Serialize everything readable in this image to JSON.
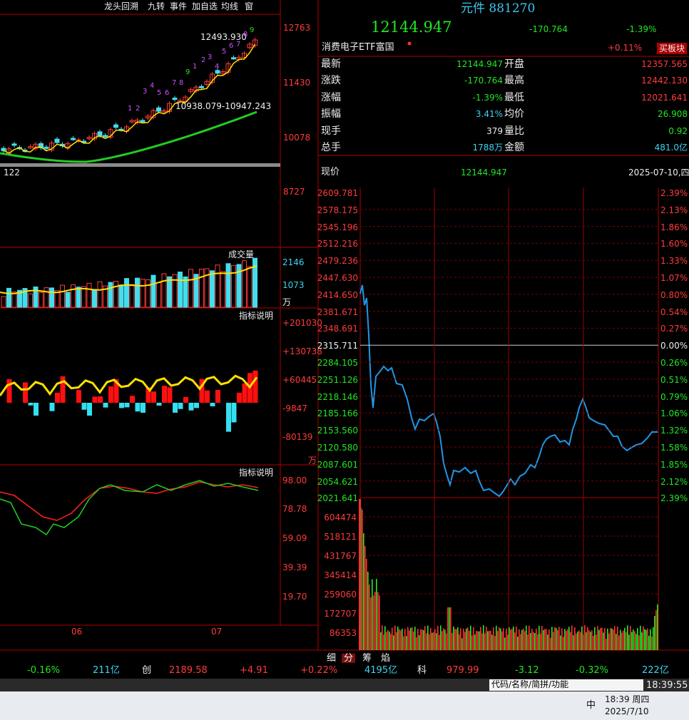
{
  "toolbar": [
    "龙头回溯",
    "九转",
    "事件",
    "加自选",
    "均线",
    "窗"
  ],
  "kline": {
    "price_labels": [
      "12763",
      "11430",
      "10078",
      "8727"
    ],
    "high_note": "12493.930",
    "range_note": "10938.079-10947.243",
    "left_note": "122",
    "nine_turn": [
      "1",
      "2",
      "3",
      "4",
      "5",
      "6",
      "7",
      "8",
      "9",
      "1",
      "2",
      "3",
      "4",
      "5",
      "6",
      "7",
      "8",
      "9"
    ],
    "x_labels": [
      "06",
      "07"
    ]
  },
  "volume_panel": {
    "title": "成交量",
    "labels": [
      "2146",
      "1073"
    ],
    "unit": "万"
  },
  "indicator1": {
    "title": "指标说明",
    "labels": [
      "+201030",
      "+130738",
      "+60445",
      "-9847",
      "-80139"
    ],
    "unit": "万"
  },
  "indicator2": {
    "title": "指标说明",
    "labels": [
      "98.00",
      "78.78",
      "59.09",
      "39.39",
      "19.70"
    ]
  },
  "header": {
    "name": "元件 881270",
    "price": "12144.947",
    "change": "-170.764",
    "pct": "-1.39%",
    "etf": "消费电子ETF富国",
    "etf_pct": "+0.11%",
    "button": "买板块"
  },
  "stats": [
    [
      "最新",
      "12144.947",
      "开盘",
      "12357.565"
    ],
    [
      "涨跌",
      "-170.764",
      "最高",
      "12442.130"
    ],
    [
      "涨幅",
      "-1.39%",
      "最低",
      "12021.641"
    ],
    [
      "振幅",
      "3.41%",
      "均价",
      "26.908"
    ],
    [
      "现手",
      "379",
      "量比",
      "0.92"
    ],
    [
      "总手",
      "1788万",
      "金额",
      "481.0亿"
    ]
  ],
  "intraday": {
    "label": "现价",
    "price": "12144.947",
    "date": "2025-07-10,四",
    "price_labels": [
      "2609.781",
      "2578.175",
      "2545.196",
      "2512.216",
      "2479.236",
      "2447.630",
      "2414.650",
      "2381.671",
      "2348.691",
      "2315.711",
      "2284.105",
      "2251.126",
      "2218.146",
      "2185.166",
      "2153.560",
      "2120.580",
      "2087.601",
      "2054.621",
      "2021.641"
    ],
    "pct_labels": [
      "2.39%",
      "2.13%",
      "1.86%",
      "1.60%",
      "1.33%",
      "1.07%",
      "0.80%",
      "0.54%",
      "0.27%",
      "0.00%",
      "0.26%",
      "0.51%",
      "0.79%",
      "1.06%",
      "1.32%",
      "1.58%",
      "1.85%",
      "2.12%",
      "2.39%"
    ],
    "volume_labels": [
      "604474",
      "518121",
      "431767",
      "345414",
      "259060",
      "172707",
      "86353"
    ]
  },
  "tabs": [
    "细",
    "分",
    "筹",
    "焰"
  ],
  "ticker": [
    "-0.16%",
    "211亿",
    "创",
    "2189.58",
    "+4.91",
    "+0.22%",
    "4195亿",
    "科",
    "979.99",
    "-3.12",
    "-0.32%",
    "222亿"
  ],
  "search": "代码/名称/简拼/功能",
  "clock": "18:39:55",
  "taskbar": {
    "ime": "中",
    "time": "18:39 周四",
    "date": "2025/7/10"
  }
}
